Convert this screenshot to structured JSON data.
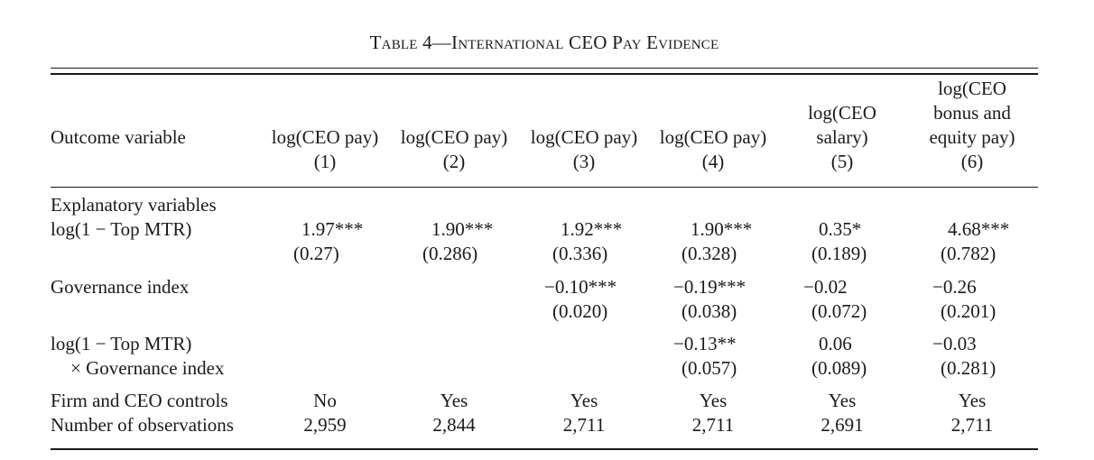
{
  "caption": "Table 4—International CEO Pay Evidence",
  "header": {
    "row_label": "Outcome variable",
    "columns": [
      {
        "lines": [
          "log(CEO pay)",
          "(1)"
        ]
      },
      {
        "lines": [
          "log(CEO pay)",
          "(2)"
        ]
      },
      {
        "lines": [
          "log(CEO pay)",
          "(3)"
        ]
      },
      {
        "lines": [
          "log(CEO pay)",
          "(4)"
        ]
      },
      {
        "lines": [
          "log(CEO",
          "salary)",
          "(5)"
        ]
      },
      {
        "lines": [
          "log(CEO",
          "bonus and",
          "equity pay)",
          "(6)"
        ]
      }
    ]
  },
  "body": {
    "section_label": "Explanatory variables",
    "rows": [
      {
        "label": [
          "log(1 − Top MTR)"
        ],
        "coef": [
          "1.97***",
          "1.90***",
          "1.92***",
          "1.90***",
          "0.35*",
          "4.68***"
        ],
        "se": [
          "(0.27)",
          "(0.286)",
          "(0.336)",
          "(0.328)",
          "(0.189)",
          "(0.782)"
        ]
      },
      {
        "label": [
          "Governance index"
        ],
        "coef": [
          "",
          "",
          "−0.10***",
          "−0.19***",
          "−0.02",
          "−0.26"
        ],
        "se": [
          "",
          "",
          "(0.020)",
          "(0.038)",
          "(0.072)",
          "(0.201)"
        ]
      },
      {
        "label": [
          "log(1 − Top MTR)",
          "× Governance index"
        ],
        "coef": [
          "",
          "",
          "",
          "−0.13**",
          "0.06",
          "−0.03"
        ],
        "se": [
          "",
          "",
          "",
          "(0.057)",
          "(0.089)",
          "(0.281)"
        ]
      }
    ],
    "controls": {
      "label": "Firm and CEO controls",
      "values": [
        "No",
        "Yes",
        "Yes",
        "Yes",
        "Yes",
        "Yes"
      ]
    },
    "observations": {
      "label": "Number of observations",
      "values": [
        "2,959",
        "2,844",
        "2,711",
        "2,711",
        "2,691",
        "2,711"
      ]
    }
  }
}
